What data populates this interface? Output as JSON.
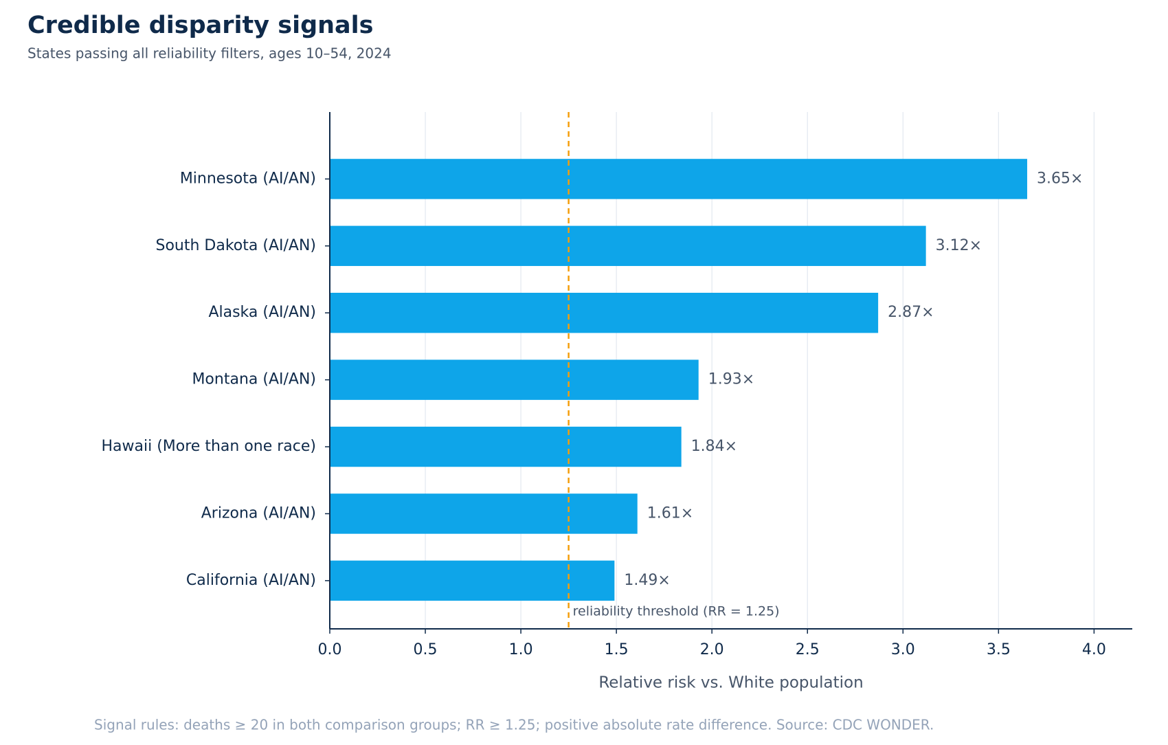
{
  "chart_data": {
    "type": "hbar",
    "title": "Credible disparity signals",
    "subtitle": "States passing all reliability filters, ages 10–54, 2024",
    "x_label": "Relative risk vs. White population",
    "footnote": "Signal rules: deaths ≥ 20 in both comparison groups; RR ≥ 1.25; positive absolute rate difference. Source: CDC WONDER.",
    "categories": [
      "Minnesota (AI/AN)",
      "South Dakota (AI/AN)",
      "Alaska (AI/AN)",
      "Montana (AI/AN)",
      "Hawaii (More than one race)",
      "Arizona (AI/AN)",
      "California (AI/AN)"
    ],
    "values": [
      3.65,
      3.12,
      2.87,
      1.93,
      1.84,
      1.61,
      1.49
    ],
    "value_labels": [
      "3.65×",
      "3.12×",
      "2.87×",
      "1.93×",
      "1.84×",
      "1.61×",
      "1.49×"
    ],
    "color": "#0ea5e9",
    "xlim": [
      0,
      4.2
    ],
    "xticks": [
      {
        "value": 0,
        "label": "0.0"
      },
      0.5,
      {
        "value": 1,
        "label": "1.0"
      },
      1.5,
      {
        "value": 2,
        "label": "2.0"
      },
      2.5,
      {
        "value": 3,
        "label": "3.0"
      },
      3.5,
      {
        "value": 4,
        "label": "4.0"
      }
    ],
    "grid": true,
    "threshold": {
      "value": 1.25,
      "label": "reliability threshold (RR = 1.25)",
      "color": "#f59e0b"
    }
  }
}
